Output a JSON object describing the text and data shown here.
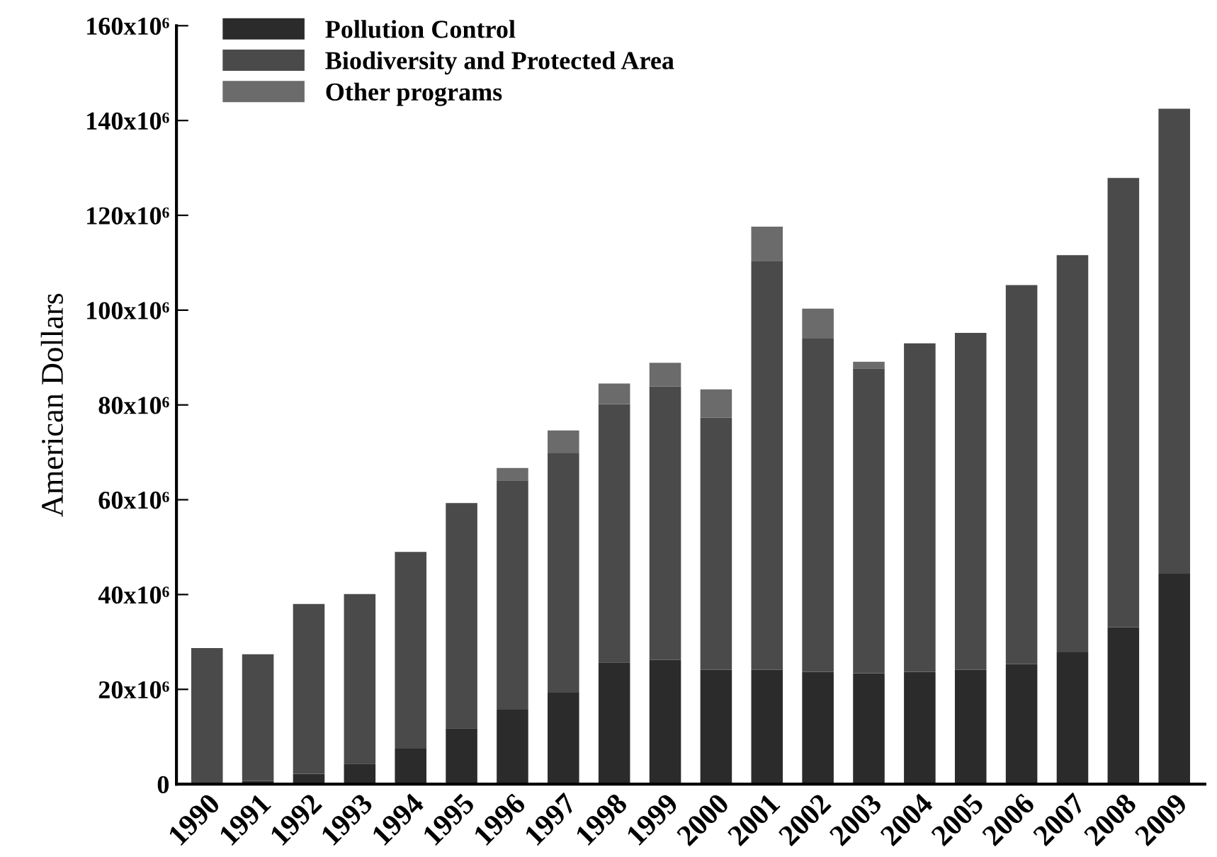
{
  "chart_data": {
    "type": "bar",
    "stacked": true,
    "ylabel": "American Dollars",
    "categories": [
      "1990",
      "1991",
      "1992",
      "1993",
      "1994",
      "1995",
      "1996",
      "1997",
      "1998",
      "1999",
      "2000",
      "2001",
      "2002",
      "2003",
      "2004",
      "2005",
      "2006",
      "2007",
      "2008",
      "2009"
    ],
    "series": [
      {
        "name": "Pollution Control",
        "color": "#2b2b2b",
        "values": [
          0,
          700000,
          2200000,
          4300000,
          7500000,
          11800000,
          15700000,
          19300000,
          25700000,
          26200000,
          24100000,
          24100000,
          23700000,
          23400000,
          23700000,
          24100000,
          25300000,
          27800000,
          33100000,
          44400000
        ]
      },
      {
        "name": "Biodiversity and Protected Area",
        "color": "#4a4a4a",
        "values": [
          28700000,
          26700000,
          35800000,
          35800000,
          41500000,
          47500000,
          48400000,
          50500000,
          54500000,
          57700000,
          53200000,
          86300000,
          70300000,
          64300000,
          69300000,
          71100000,
          80000000,
          83800000,
          94800000,
          98100000
        ]
      },
      {
        "name": "Other programs",
        "color": "#6b6b6b",
        "values": [
          0,
          0,
          0,
          0,
          0,
          0,
          2600000,
          4800000,
          4300000,
          5000000,
          6000000,
          7200000,
          6300000,
          1400000,
          0,
          0,
          0,
          0,
          0,
          0
        ]
      }
    ],
    "ylim": [
      0,
      160000000
    ],
    "yticks": [
      0,
      {
        "value": 20000000,
        "label": "20x10⁶"
      },
      {
        "value": 40000000,
        "label": "40x10⁶"
      },
      {
        "value": 60000000,
        "label": "60x10⁶"
      },
      {
        "value": 80000000,
        "label": "80x10⁶"
      },
      {
        "value": 100000000,
        "label": "100x10⁶"
      },
      {
        "value": 120000000,
        "label": "120x10⁶"
      },
      {
        "value": 140000000,
        "label": "140x10⁶"
      },
      {
        "value": 160000000,
        "label": "160x10⁶"
      }
    ],
    "grid": false,
    "legend": "top left"
  }
}
